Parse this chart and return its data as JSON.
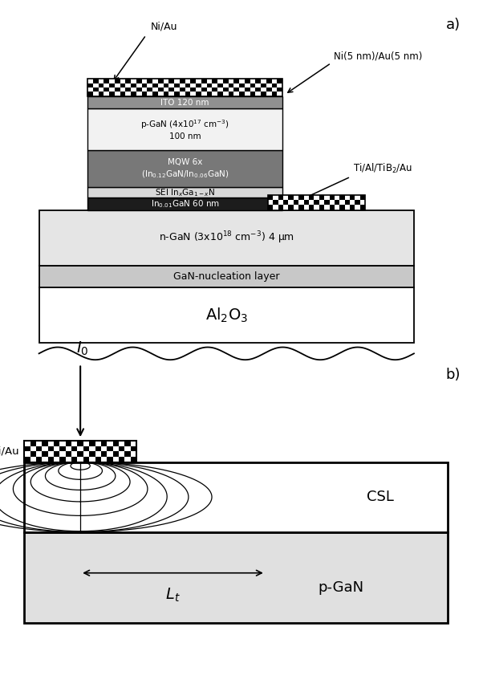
{
  "fig_width": 6.07,
  "fig_height": 8.72,
  "bg_color": "#ffffff",
  "panel_a": {
    "label": "a)",
    "substrate_label": "Al$_2$O$_3$",
    "nucleation_label": "GaN-nucleation layer",
    "ngaN_label": "n-GaN (3x10$^{18}$ cm$^{-3}$) 4 μm",
    "ingan_csl_label": "In$_{0.01}$GaN 60 nm",
    "sei_label": "SEI In$_x$Ga$_{1-x}$N",
    "mqw_label": "MQW 6x\n(In$_{0.12}$GaN/In$_{0.06}$GaN)",
    "pgaN_label": "p-GaN (4x10$^{17}$ cm$^{-3}$)\n100 nm",
    "ito_label": "ITO 120 nm",
    "ni_au_label": "Ni/Au",
    "ni_au_right_label": "Ni(5 nm)/Au(5 nm)",
    "ti_al_label": "Ti/Al/TiB$_2$/Au"
  },
  "panel_b": {
    "label": "b)",
    "csl_label": "CSL",
    "pgaN_label": "p-GaN",
    "ni_au_label": "Ni/Au",
    "I0_label": "I$_0$",
    "Lt_label": "L$_t$"
  }
}
